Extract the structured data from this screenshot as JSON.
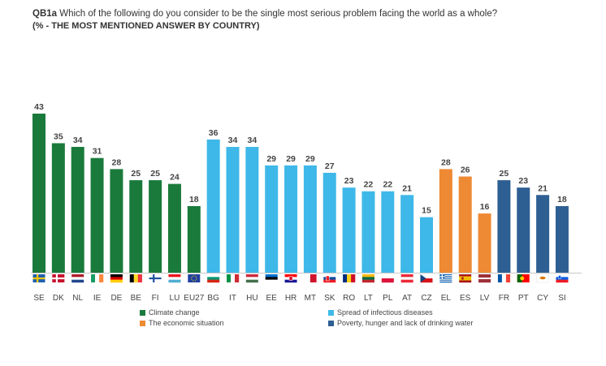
{
  "header": {
    "code": "QB1a",
    "question": "Which of the following do you consider to be the single most serious problem facing the world as a whole?",
    "subtitle": "(% - THE MOST MENTIONED ANSWER BY COUNTRY)"
  },
  "colors": {
    "climate": "#1a7a3c",
    "infectious": "#3eb8e8",
    "economic": "#ee8a34",
    "poverty": "#2e5f93"
  },
  "chart_data": {
    "type": "bar",
    "title": "Which of the following do you consider to be the single most serious problem facing the world as a whole?",
    "subtitle": "(% - THE MOST MENTIONED ANSWER BY COUNTRY)",
    "ylim": [
      0,
      45
    ],
    "grid": false,
    "categories": [
      "SE",
      "DK",
      "NL",
      "IE",
      "DE",
      "BE",
      "FI",
      "LU",
      "EU27",
      "BG",
      "IT",
      "HU",
      "EE",
      "HR",
      "MT",
      "SK",
      "RO",
      "LT",
      "PL",
      "AT",
      "CZ",
      "EL",
      "ES",
      "LV",
      "FR",
      "PT",
      "CY",
      "SI"
    ],
    "values": [
      43,
      35,
      34,
      31,
      28,
      25,
      25,
      24,
      18,
      36,
      34,
      34,
      29,
      29,
      29,
      27,
      23,
      22,
      22,
      21,
      15,
      28,
      26,
      16,
      25,
      23,
      21,
      18
    ],
    "groups": [
      "climate",
      "climate",
      "climate",
      "climate",
      "climate",
      "climate",
      "climate",
      "climate",
      "climate",
      "infectious",
      "infectious",
      "infectious",
      "infectious",
      "infectious",
      "infectious",
      "infectious",
      "infectious",
      "infectious",
      "infectious",
      "infectious",
      "infectious",
      "economic",
      "economic",
      "economic",
      "poverty",
      "poverty",
      "poverty",
      "poverty"
    ],
    "legend": [
      {
        "key": "climate",
        "label": "Climate change"
      },
      {
        "key": "infectious",
        "label": "Spread of infectious diseases"
      },
      {
        "key": "economic",
        "label": "The economic situation"
      },
      {
        "key": "poverty",
        "label": "Poverty, hunger and lack of drinking water"
      }
    ]
  }
}
